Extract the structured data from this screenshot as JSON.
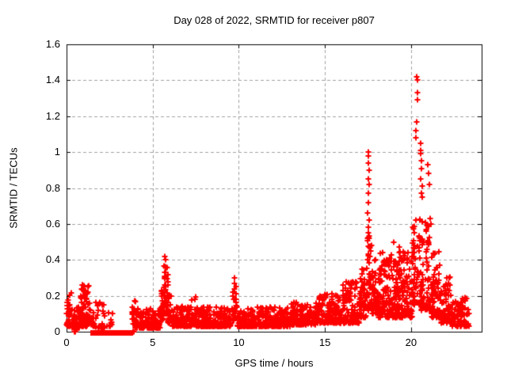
{
  "chart_data": {
    "type": "scatter",
    "title": "Day 028 of 2022, SRMTID for receiver p807",
    "xlabel": "GPS time / hours",
    "ylabel": "SRMTID / TECUs",
    "xlim": [
      0,
      24.1
    ],
    "ylim": [
      0,
      1.6
    ],
    "xticks": {
      "values": [
        0,
        5,
        10,
        15,
        20
      ],
      "labels": [
        "0",
        "5",
        "10",
        "15",
        "20"
      ]
    },
    "yticks": {
      "values": [
        0,
        0.2,
        0.4,
        0.6,
        0.8,
        1.0,
        1.2,
        1.4,
        1.6
      ],
      "labels": [
        "0",
        "0.2",
        "0.4",
        "0.6",
        "0.8",
        "1",
        "1.2",
        "1.4",
        "1.6"
      ]
    },
    "grid": {
      "show": true,
      "style": "dashed",
      "color": "#a0a0a0"
    },
    "marker": {
      "shape": "plus",
      "color": "#ff0000",
      "size": 7,
      "stroke": 2
    },
    "gap_marker": {
      "shape": "filled-square",
      "color": "#ff0000",
      "size": 7,
      "y": 0,
      "step": 0.065,
      "x_ranges": [
        [
          1.52,
          1.72
        ],
        [
          1.88,
          2.18
        ],
        [
          2.32,
          3.28
        ],
        [
          3.44,
          3.72
        ]
      ]
    },
    "baseline_segments": [
      {
        "t0": 0.0,
        "t1": 0.3,
        "n": 40,
        "vmin": 0.03,
        "vmax": 0.23,
        "p": 1.8
      },
      {
        "t0": 0.3,
        "t1": 0.75,
        "n": 55,
        "vmin": 0.02,
        "vmax": 0.16,
        "p": 2.0
      },
      {
        "t0": 0.75,
        "t1": 1.35,
        "n": 90,
        "vmin": 0.03,
        "vmax": 0.26,
        "p": 1.8
      },
      {
        "t0": 1.35,
        "t1": 1.6,
        "n": 18,
        "vmin": 0.03,
        "vmax": 0.14,
        "p": 2.0
      },
      {
        "t0": 1.7,
        "t1": 2.25,
        "n": 28,
        "vmin": 0.02,
        "vmax": 0.17,
        "p": 2.0
      },
      {
        "t0": 2.35,
        "t1": 2.65,
        "n": 10,
        "vmin": 0.03,
        "vmax": 0.14,
        "p": 2.0
      },
      {
        "t0": 3.8,
        "t1": 4.05,
        "n": 16,
        "vmin": 0.04,
        "vmax": 0.19,
        "p": 1.8
      },
      {
        "t0": 4.0,
        "t1": 5.45,
        "n": 150,
        "vmin": 0.02,
        "vmax": 0.13,
        "p": 2.2
      },
      {
        "t0": 5.45,
        "t1": 5.65,
        "n": 30,
        "vmin": 0.06,
        "vmax": 0.24,
        "p": 1.6
      },
      {
        "t0": 5.65,
        "t1": 5.9,
        "n": 45,
        "vmin": 0.1,
        "vmax": 0.38,
        "p": 1.6
      },
      {
        "t0": 5.9,
        "t1": 6.15,
        "n": 28,
        "vmin": 0.05,
        "vmax": 0.2,
        "p": 1.8
      },
      {
        "t0": 6.15,
        "t1": 7.25,
        "n": 110,
        "vmin": 0.03,
        "vmax": 0.14,
        "p": 2.2
      },
      {
        "t0": 7.25,
        "t1": 7.55,
        "n": 32,
        "vmin": 0.04,
        "vmax": 0.2,
        "p": 1.8
      },
      {
        "t0": 7.55,
        "t1": 9.55,
        "n": 200,
        "vmin": 0.03,
        "vmax": 0.14,
        "p": 2.2
      },
      {
        "t0": 9.6,
        "t1": 9.9,
        "n": 30,
        "vmin": 0.06,
        "vmax": 0.26,
        "p": 1.6
      },
      {
        "t0": 9.9,
        "t1": 11.0,
        "n": 120,
        "vmin": 0.03,
        "vmax": 0.13,
        "p": 2.2
      },
      {
        "t0": 11.0,
        "t1": 13.0,
        "n": 200,
        "vmin": 0.03,
        "vmax": 0.14,
        "p": 2.2
      },
      {
        "t0": 13.0,
        "t1": 14.5,
        "n": 150,
        "vmin": 0.04,
        "vmax": 0.17,
        "p": 2.0
      },
      {
        "t0": 14.5,
        "t1": 16.0,
        "n": 150,
        "vmin": 0.05,
        "vmax": 0.21,
        "p": 2.0
      },
      {
        "t0": 16.0,
        "t1": 17.0,
        "n": 110,
        "vmin": 0.05,
        "vmax": 0.28,
        "p": 1.9
      },
      {
        "t0": 17.0,
        "t1": 17.4,
        "n": 45,
        "vmin": 0.08,
        "vmax": 0.38,
        "p": 1.7
      },
      {
        "t0": 17.4,
        "t1": 17.75,
        "n": 55,
        "vmin": 0.12,
        "vmax": 0.55,
        "p": 1.5
      },
      {
        "t0": 17.75,
        "t1": 18.1,
        "n": 45,
        "vmin": 0.1,
        "vmax": 0.4,
        "p": 1.7
      },
      {
        "t0": 18.1,
        "t1": 20.1,
        "n": 260,
        "vmin": 0.08,
        "vmax": 0.45,
        "p": 1.6
      },
      {
        "t0": 20.1,
        "t1": 20.55,
        "n": 60,
        "vmin": 0.15,
        "vmax": 0.65,
        "p": 1.6
      },
      {
        "t0": 20.55,
        "t1": 21.15,
        "n": 70,
        "vmin": 0.12,
        "vmax": 0.62,
        "p": 1.6
      },
      {
        "t0": 21.15,
        "t1": 21.7,
        "n": 75,
        "vmin": 0.08,
        "vmax": 0.45,
        "p": 1.9
      },
      {
        "t0": 21.7,
        "t1": 22.35,
        "n": 75,
        "vmin": 0.05,
        "vmax": 0.32,
        "p": 2.0
      },
      {
        "t0": 22.35,
        "t1": 23.35,
        "n": 90,
        "vmin": 0.03,
        "vmax": 0.2,
        "p": 2.0
      }
    ],
    "peak_points": [
      [
        5.72,
        0.42
      ],
      [
        5.74,
        0.4
      ],
      [
        5.73,
        0.36
      ],
      [
        5.75,
        0.33
      ],
      [
        5.7,
        0.3
      ],
      [
        9.74,
        0.3
      ],
      [
        9.76,
        0.27
      ],
      [
        9.73,
        0.24
      ],
      [
        17.52,
        1.0
      ],
      [
        17.54,
        0.98
      ],
      [
        17.52,
        0.94
      ],
      [
        17.55,
        0.9
      ],
      [
        17.53,
        0.85
      ],
      [
        17.56,
        0.82
      ],
      [
        17.52,
        0.77
      ],
      [
        17.54,
        0.72
      ],
      [
        17.5,
        0.66
      ],
      [
        17.56,
        0.62
      ],
      [
        17.53,
        0.58
      ],
      [
        17.5,
        0.52
      ],
      [
        17.55,
        0.47
      ],
      [
        19.0,
        0.5
      ],
      [
        19.3,
        0.47
      ],
      [
        20.35,
        1.42
      ],
      [
        20.37,
        1.4
      ],
      [
        20.36,
        1.33
      ],
      [
        20.38,
        1.29
      ],
      [
        20.35,
        1.17
      ],
      [
        20.3,
        1.12
      ],
      [
        20.28,
        1.08
      ],
      [
        20.55,
        1.05
      ],
      [
        20.58,
        1.01
      ],
      [
        20.56,
        0.99
      ],
      [
        20.6,
        0.95
      ],
      [
        20.62,
        0.91
      ],
      [
        20.57,
        0.85
      ],
      [
        20.63,
        0.81
      ],
      [
        20.6,
        0.77
      ],
      [
        20.65,
        0.75
      ],
      [
        20.95,
        0.93
      ],
      [
        21.0,
        0.88
      ],
      [
        21.05,
        0.82
      ],
      [
        21.1,
        0.63
      ],
      [
        21.15,
        0.6
      ],
      [
        0.45,
        0.0
      ],
      [
        0.52,
        0.0
      ],
      [
        3.86,
        0.0
      ],
      [
        3.93,
        0.0
      ]
    ]
  }
}
